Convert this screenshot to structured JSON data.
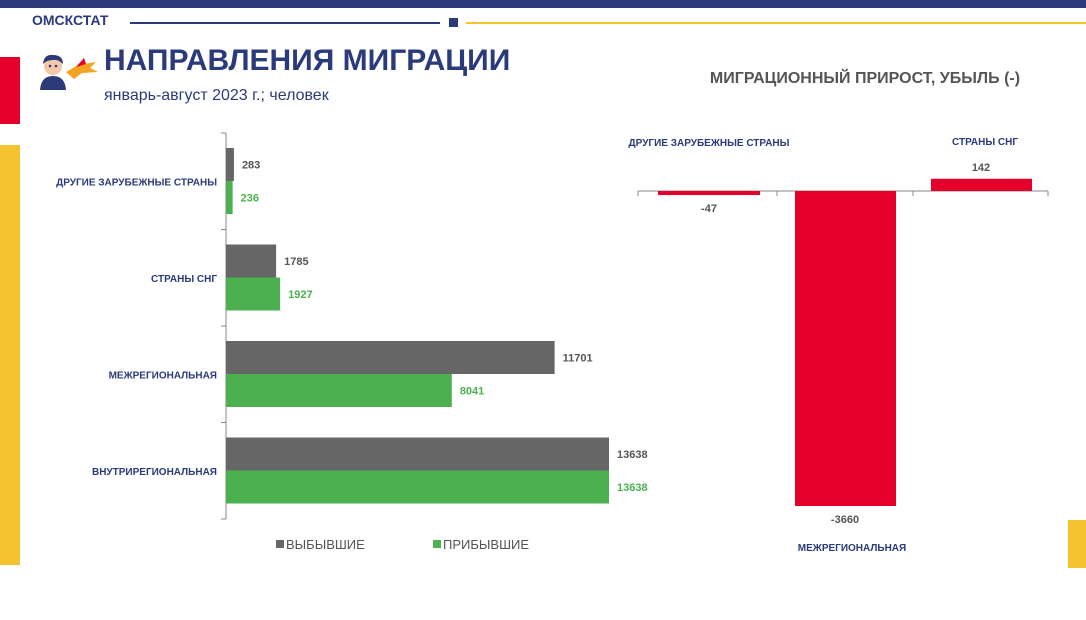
{
  "header": {
    "brand": "ОМСКСТАТ",
    "title": "НАПРАВЛЕНИЯ МИГРАЦИИ",
    "subtitle": "январь-август 2023 г.; человек"
  },
  "colors": {
    "navy": "#2b3a7a",
    "accent_yellow": "#f4c430",
    "accent_red": "#e4002b",
    "departed": "#666666",
    "arrived": "#4caf50",
    "net_bar": "#e4002b"
  },
  "chart_data": [
    {
      "type": "bar",
      "orientation": "horizontal",
      "categories": [
        "ДРУГИЕ ЗАРУБЕЖНЫЕ СТРАНЫ",
        "СТРАНЫ СНГ",
        "МЕЖРЕГИОНАЛЬНАЯ",
        "ВНУТРИРЕГИОНАЛЬНАЯ"
      ],
      "series": [
        {
          "name": "ВЫБЫВШИЕ",
          "values": [
            283,
            1785,
            11701,
            13638
          ],
          "color": "#666666"
        },
        {
          "name": "ПРИБЫВШИЕ",
          "values": [
            236,
            1927,
            8041,
            13638
          ],
          "color": "#4caf50"
        }
      ],
      "xlim": [
        0,
        14000
      ],
      "grid": false,
      "legend": "bottom"
    },
    {
      "type": "bar",
      "orientation": "vertical",
      "title": "МИГРАЦИОННЫЙ ПРИРОСТ, УБЫЛЬ (-)",
      "categories": [
        "ДРУГИЕ ЗАРУБЕЖНЫЕ СТРАНЫ",
        "МЕЖРЕГИОНАЛЬНАЯ",
        "СТРАНЫ СНГ"
      ],
      "values": [
        -47,
        -3660,
        142
      ],
      "ylim": [
        -3700,
        150
      ],
      "grid": false
    }
  ]
}
